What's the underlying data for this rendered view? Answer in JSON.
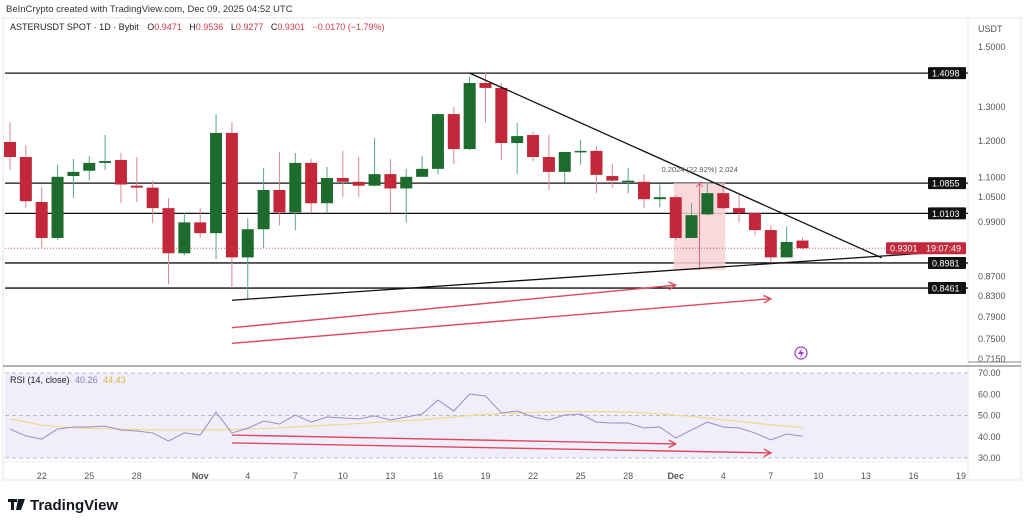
{
  "header": {
    "credit": "BeInCrypto created with TradingView.com, Dec 09, 2025 04:52 UTC"
  },
  "legend": {
    "symbol": "ASTERUSDT SPOT · 1D · Bybit",
    "o_label": "O",
    "o_value": "0.9471",
    "h_label": "H",
    "h_value": "0.9536",
    "l_label": "L",
    "l_value": "0.9277",
    "c_label": "C",
    "c_value": "0.9301",
    "change": "−0.0170 (−1.79%)"
  },
  "price_axis": {
    "currency": "USDT",
    "ticks": [
      "1.5000",
      "1.3000",
      "1.2000",
      "1.1000",
      "1.0500",
      "0.9900",
      "0.8700",
      "0.8300",
      "0.7900",
      "0.7500",
      "0.7150"
    ],
    "levels": [
      "1.4098",
      "1.0855",
      "1.0103",
      "0.8981",
      "0.8461"
    ],
    "last_price": "0.9301",
    "countdown": "19:07:49"
  },
  "measure_label": "0.2024 (22.92%) 2,024",
  "rsi": {
    "title": "RSI (14, close)",
    "value": "40.26",
    "ma_value": "44.43",
    "ticks": [
      "70.00",
      "60.00",
      "50.00",
      "40.00",
      "30.00"
    ]
  },
  "time_axis": {
    "ticks": [
      {
        "label": "22",
        "date": "2025-10-22"
      },
      {
        "label": "25",
        "date": "2025-10-25"
      },
      {
        "label": "28",
        "date": "2025-10-28"
      },
      {
        "label": "Nov",
        "date": "2025-11-01"
      },
      {
        "label": "4",
        "date": "2025-11-04"
      },
      {
        "label": "7",
        "date": "2025-11-07"
      },
      {
        "label": "10",
        "date": "2025-11-10"
      },
      {
        "label": "13",
        "date": "2025-11-13"
      },
      {
        "label": "16",
        "date": "2025-11-16"
      },
      {
        "label": "19",
        "date": "2025-11-19"
      },
      {
        "label": "22",
        "date": "2025-11-22"
      },
      {
        "label": "25",
        "date": "2025-11-25"
      },
      {
        "label": "28",
        "date": "2025-11-28"
      },
      {
        "label": "Dec",
        "date": "2025-12-01"
      },
      {
        "label": "4",
        "date": "2025-12-04"
      },
      {
        "label": "7",
        "date": "2025-12-07"
      },
      {
        "label": "10",
        "date": "2025-12-10"
      },
      {
        "label": "13",
        "date": "2025-12-13"
      },
      {
        "label": "16",
        "date": "2025-12-16"
      },
      {
        "label": "19",
        "date": "2025-12-19"
      }
    ]
  },
  "footer": {
    "brand": "TradingView"
  },
  "colors": {
    "up": "#1e6b2e",
    "down": "#c2283a",
    "rsi": "#9b8cc8",
    "rsi_ma": "#f2d98a",
    "annot": "#e0485c",
    "rsi_bg": "#f1eefb",
    "measure": "#f8d2d6"
  },
  "chart_data": {
    "type": "candlestick",
    "first_date": "2025-10-20",
    "ohlc": [
      [
        1.197,
        1.255,
        1.12,
        1.155
      ],
      [
        1.155,
        1.188,
        1.023,
        1.04
      ],
      [
        1.038,
        1.077,
        0.93,
        0.953
      ],
      [
        0.953,
        1.134,
        0.948,
        1.102
      ],
      [
        1.104,
        1.15,
        1.048,
        1.115
      ],
      [
        1.118,
        1.158,
        1.092,
        1.139
      ],
      [
        1.139,
        1.217,
        1.12,
        1.144
      ],
      [
        1.147,
        1.166,
        1.035,
        1.082
      ],
      [
        1.079,
        1.155,
        1.038,
        1.074
      ],
      [
        1.074,
        1.092,
        0.987,
        1.023
      ],
      [
        1.023,
        1.048,
        0.854,
        0.919
      ],
      [
        0.919,
        1.011,
        0.915,
        0.989
      ],
      [
        0.989,
        1.023,
        0.953,
        0.964
      ],
      [
        0.964,
        1.279,
        0.906,
        1.223
      ],
      [
        1.223,
        1.255,
        0.846,
        0.91
      ],
      [
        0.91,
        0.999,
        0.822,
        0.973
      ],
      [
        0.973,
        1.126,
        0.93,
        1.068
      ],
      [
        1.068,
        1.169,
        0.982,
        1.013
      ],
      [
        1.013,
        1.166,
        0.971,
        1.139
      ],
      [
        1.139,
        1.15,
        1.011,
        1.035
      ],
      [
        1.035,
        1.128,
        1.011,
        1.099
      ],
      [
        1.099,
        1.172,
        1.05,
        1.089
      ],
      [
        1.089,
        1.155,
        1.05,
        1.079
      ],
      [
        1.079,
        1.208,
        1.077,
        1.109
      ],
      [
        1.109,
        1.15,
        1.011,
        1.072
      ],
      [
        1.072,
        1.123,
        0.989,
        1.102
      ],
      [
        1.102,
        1.158,
        1.102,
        1.123
      ],
      [
        1.123,
        1.282,
        1.109,
        1.279
      ],
      [
        1.279,
        1.301,
        1.136,
        1.177
      ],
      [
        1.177,
        1.397,
        1.174,
        1.377
      ],
      [
        1.377,
        1.4098,
        1.255,
        1.361
      ],
      [
        1.361,
        1.377,
        1.147,
        1.194
      ],
      [
        1.194,
        1.252,
        1.109,
        1.214
      ],
      [
        1.217,
        1.226,
        1.144,
        1.155
      ],
      [
        1.155,
        1.217,
        1.068,
        1.115
      ],
      [
        1.115,
        1.169,
        1.087,
        1.169
      ],
      [
        1.169,
        1.203,
        1.134,
        1.172
      ],
      [
        1.172,
        1.186,
        1.06,
        1.107
      ],
      [
        1.104,
        1.136,
        1.074,
        1.092
      ],
      [
        1.089,
        1.126,
        1.06,
        1.092
      ],
      [
        1.089,
        1.109,
        1.023,
        1.045
      ],
      [
        1.045,
        1.082,
        1.025,
        1.05
      ],
      [
        1.05,
        1.055,
        0.948,
        0.953
      ],
      [
        0.953,
        1.035,
        0.953,
        1.006
      ],
      [
        1.008,
        1.087,
        1.006,
        1.06
      ],
      [
        1.06,
        1.087,
        1.02,
        1.023
      ],
      [
        1.023,
        1.06,
        0.989,
        1.011
      ],
      [
        1.011,
        1.011,
        0.959,
        0.971
      ],
      [
        0.971,
        0.982,
        0.897,
        0.91
      ],
      [
        0.91,
        0.98,
        0.91,
        0.944
      ],
      [
        0.9471,
        0.9536,
        0.9277,
        0.9301
      ]
    ],
    "price_range": [
      0.715,
      1.5
    ],
    "price_scale": "log",
    "horizontal_levels": [
      1.4098,
      1.0855,
      1.0103,
      0.8981,
      0.8461
    ],
    "trendlines": [
      {
        "from": [
          "2025-11-18",
          1.4098
        ],
        "to": [
          "2025-12-14",
          0.909
        ]
      },
      {
        "from": [
          "2025-11-03",
          0.822
        ],
        "to": [
          "2025-12-17",
          0.92
        ]
      }
    ],
    "price_arrows": [
      {
        "from": [
          "2025-11-03",
          0.77
        ],
        "to": [
          "2025-12-01",
          0.852
        ]
      },
      {
        "from": [
          "2025-11-03",
          0.742
        ],
        "to": [
          "2025-12-07",
          0.825
        ]
      }
    ],
    "measure": {
      "from_date": "2025-12-01",
      "to_date": "2025-12-04",
      "high": 1.0855,
      "low": 0.8831
    },
    "rsi_values": [
      43.6,
      40.4,
      38.9,
      43.6,
      44.6,
      44.6,
      45,
      43.2,
      42.7,
      41.8,
      38,
      41.8,
      40.8,
      51.6,
      41.8,
      44,
      47.4,
      46,
      50.2,
      46.9,
      49.3,
      48.8,
      48.4,
      49.8,
      47.9,
      49.3,
      50.7,
      57.3,
      52.1,
      60.1,
      59.2,
      51.2,
      52.1,
      49.3,
      47.9,
      50.2,
      50.7,
      46.9,
      46.5,
      46.5,
      44.1,
      44.6,
      39.4,
      43.2,
      46.9,
      44.6,
      44.1,
      41.8,
      38.5,
      41.3,
      40.26
    ],
    "rsi_ma_values": [
      48.4,
      47,
      45.5,
      44.8,
      44.3,
      44,
      43.8,
      43.6,
      43.4,
      43.3,
      43.2,
      43.2,
      43.2,
      43.3,
      43.4,
      43.6,
      43.9,
      44.2,
      44.6,
      45,
      45.4,
      45.8,
      46.2,
      46.7,
      47.2,
      47.6,
      48,
      48.6,
      49.3,
      50,
      50.6,
      51,
      51.3,
      51.5,
      51.7,
      51.8,
      51.9,
      51.9,
      51.8,
      51.6,
      51.2,
      50.8,
      50.2,
      49.5,
      48.8,
      48,
      47.2,
      46.4,
      45.6,
      45,
      44.43
    ],
    "rsi_arrows": [
      {
        "from": [
          "2025-11-03",
          40.8
        ],
        "to": [
          "2025-12-01",
          36.6
        ]
      },
      {
        "from": [
          "2025-11-03",
          37.1
        ],
        "to": [
          "2025-12-07",
          32.4
        ]
      }
    ],
    "rsi_range": [
      30,
      70
    ]
  }
}
